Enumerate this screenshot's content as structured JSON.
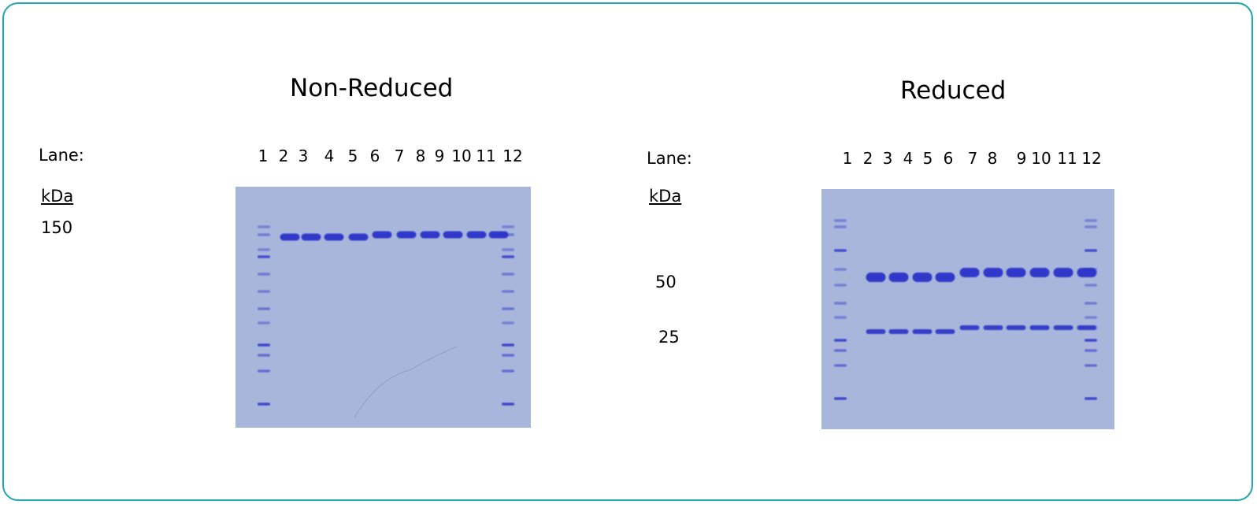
{
  "colors": {
    "border": "#1fa5b0",
    "gel": "#a9b6dc",
    "band": "#2a33c8"
  },
  "panels": [
    {
      "title": "Non-Reduced",
      "lane_label": "Lane:",
      "kda_label": "kDa",
      "lanes": [
        "1",
        "2",
        "3",
        "4",
        "5",
        "6",
        "7",
        "8",
        "9",
        "10",
        "11",
        "12"
      ],
      "markers": [
        "150"
      ]
    },
    {
      "title": "Reduced",
      "lane_label": "Lane:",
      "kda_label": "kDa",
      "lanes": [
        "1",
        "2",
        "3",
        "4",
        "5",
        "6",
        "7",
        "8",
        "9",
        "10",
        "11",
        "12"
      ],
      "markers": [
        "50",
        "25"
      ]
    }
  ]
}
